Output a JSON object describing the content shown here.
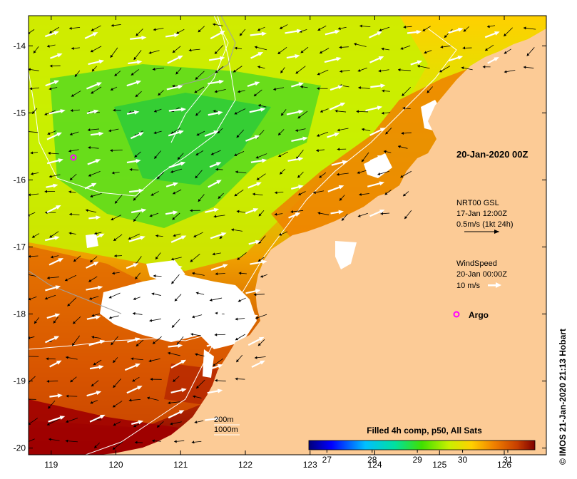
{
  "map": {
    "lon_ticks": [
      "119",
      "120",
      "121",
      "122",
      "123",
      "124",
      "125",
      "126"
    ],
    "lat_ticks": [
      "-14",
      "-15",
      "-16",
      "-17",
      "-18",
      "-19",
      "-20"
    ],
    "lon_range": [
      118.65,
      126.65
    ],
    "lat_range": [
      -13.55,
      -20.1
    ]
  },
  "annotations": {
    "datetime": "20-Jan-2020 00Z",
    "current_source": "NRT00 GSL",
    "current_time": "17-Jan 12:00Z",
    "current_scale": "0.5m/s (1kt 24h)",
    "wind_title": "WindSpeed",
    "wind_time": "20-Jan 00:00Z",
    "wind_scale": "10 m/s",
    "argo_label": "Argo",
    "bathy_200": "200m",
    "bathy_1000": "1000m"
  },
  "colorbar": {
    "title": "Filled 4h comp, p50, All Sats",
    "ticks": [
      "27",
      "28",
      "29",
      "30",
      "31"
    ],
    "range": [
      26.6,
      31.6
    ],
    "colors": [
      "#00007a",
      "#0000ff",
      "#00bfff",
      "#00e0a0",
      "#40e000",
      "#c8f000",
      "#ffd000",
      "#f08000",
      "#c84000",
      "#800000"
    ]
  },
  "credit": "© IMOS 21-Jan-2020 21:13 Hobart",
  "colors": {
    "land": "#fccb96",
    "cloud": "#ffffff",
    "argo": "#ff00ff"
  }
}
